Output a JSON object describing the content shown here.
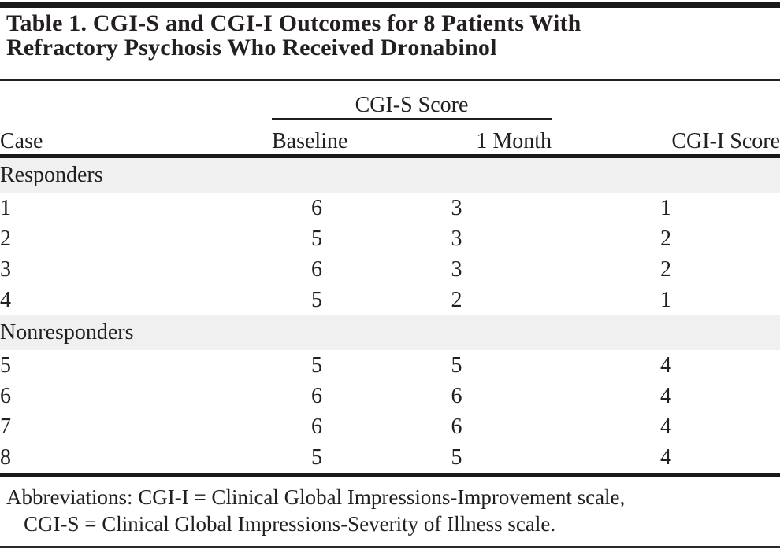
{
  "table": {
    "title_line1": "Table 1. CGI-S and CGI-I Outcomes for 8 Patients With",
    "title_line2": "Refractory Psychosis Who Received Dronabinol",
    "spanner_header": "CGI-S Score",
    "columns": [
      "Case",
      "Baseline",
      "1 Month",
      "CGI-I Score"
    ],
    "sections": [
      {
        "label": "Responders",
        "rows": [
          {
            "case": "1",
            "baseline": "6",
            "month1": "3",
            "cgi_i": "1"
          },
          {
            "case": "2",
            "baseline": "5",
            "month1": "3",
            "cgi_i": "2"
          },
          {
            "case": "3",
            "baseline": "6",
            "month1": "3",
            "cgi_i": "2"
          },
          {
            "case": "4",
            "baseline": "5",
            "month1": "2",
            "cgi_i": "1"
          }
        ]
      },
      {
        "label": "Nonresponders",
        "rows": [
          {
            "case": "5",
            "baseline": "5",
            "month1": "5",
            "cgi_i": "4"
          },
          {
            "case": "6",
            "baseline": "6",
            "month1": "6",
            "cgi_i": "4"
          },
          {
            "case": "7",
            "baseline": "6",
            "month1": "6",
            "cgi_i": "4"
          },
          {
            "case": "8",
            "baseline": "5",
            "month1": "5",
            "cgi_i": "4"
          }
        ]
      }
    ],
    "footnote_line1": "Abbreviations: CGI-I = Clinical Global Impressions-Improvement scale,",
    "footnote_line2": "CGI-S = Clinical Global Impressions-Severity of Illness scale."
  },
  "colors": {
    "background": "#ffffff",
    "text": "#231f20",
    "rule": "#191919",
    "section_band": "#f0f0f0"
  }
}
